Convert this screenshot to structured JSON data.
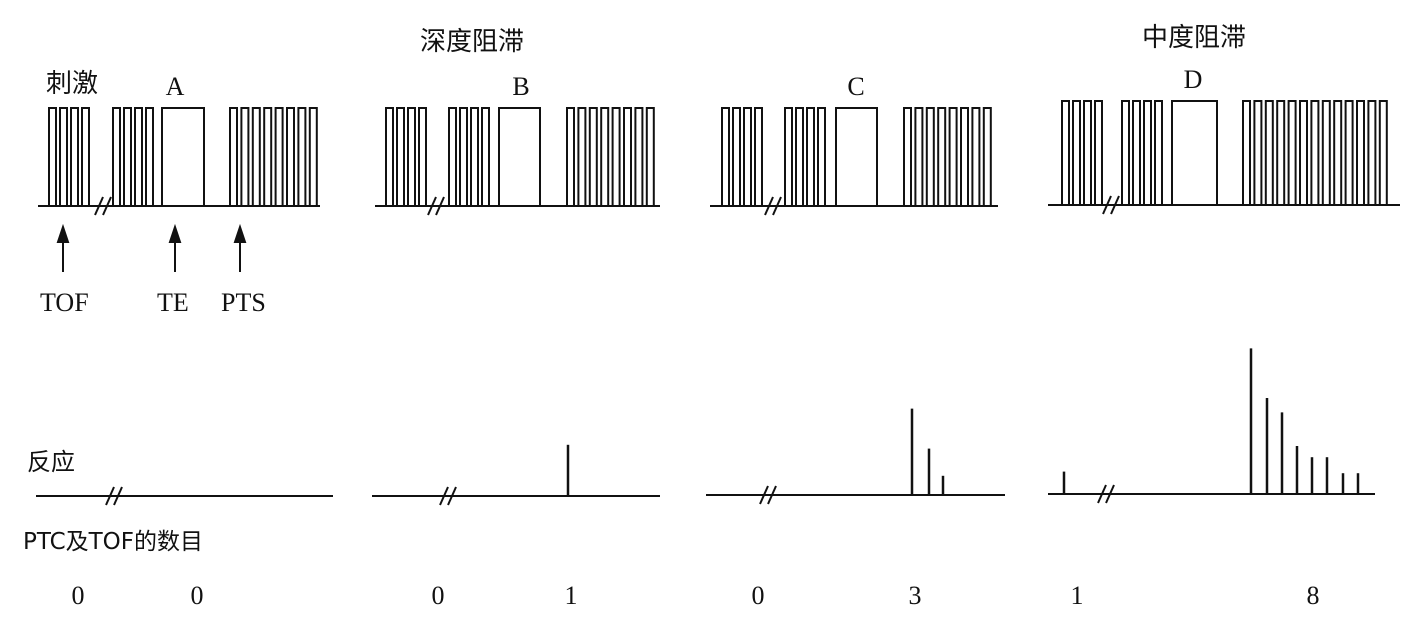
{
  "labels": {
    "stimulus": "刺激",
    "response": "反应",
    "count_label": "PTC及TOF的数目",
    "deep_block": "深度阻滞",
    "moderate_block": "中度阻滞",
    "tof": "TOF",
    "te": "TE",
    "pts": "PTS"
  },
  "panels": [
    {
      "letter": "A",
      "tof_response": [],
      "ptc_responses": [],
      "counts": [
        "0",
        "0"
      ]
    },
    {
      "letter": "B",
      "tof_response": [],
      "ptc_responses": [
        0.32
      ],
      "counts": [
        "0",
        "1"
      ]
    },
    {
      "letter": "C",
      "tof_response": [],
      "ptc_responses": [
        0.54,
        0.29,
        0.12
      ],
      "counts": [
        "0",
        "3"
      ]
    },
    {
      "letter": "D",
      "tof_response": [
        0.14
      ],
      "ptc_responses": [
        0.91,
        0.6,
        0.51,
        0.3,
        0.23,
        0.23,
        0.13,
        0.13
      ],
      "counts": [
        "1",
        "8"
      ]
    }
  ]
}
